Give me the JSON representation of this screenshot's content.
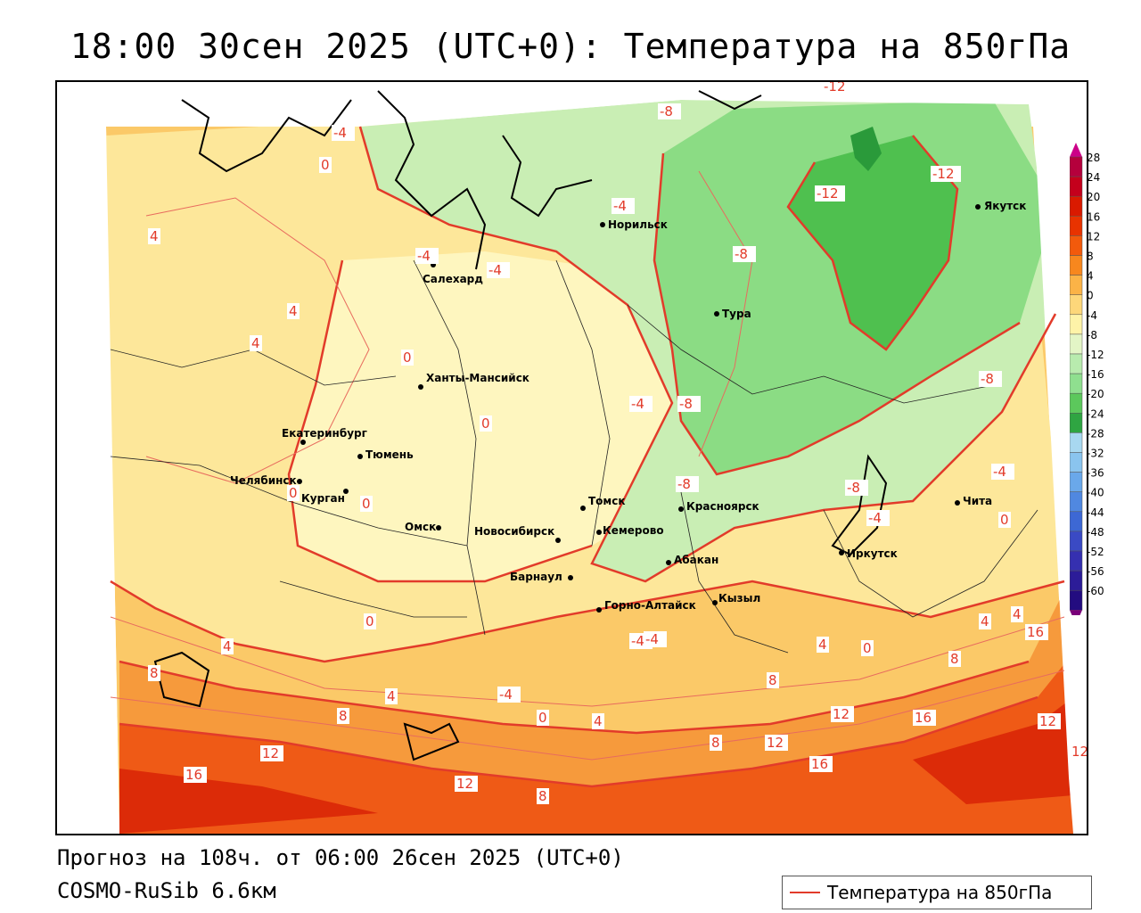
{
  "title": "18:00 30сен 2025 (UTC+0): Температура на 850гПа",
  "forecast_line": "Прогноз на 108ч. от 06:00 26сен 2025 (UTC+0)",
  "model_line": "COSMO-RuSib 6.6км",
  "legend": {
    "label": "Температура на 850гПа",
    "color": "#e23b2a"
  },
  "cities": [
    {
      "name": "Норильск"
    },
    {
      "name": "Салехард"
    },
    {
      "name": "Тура"
    },
    {
      "name": "Якутск"
    },
    {
      "name": "Ханты-Мансийск"
    },
    {
      "name": "Екатеринбург"
    },
    {
      "name": "Тюмень"
    },
    {
      "name": "Челябинск"
    },
    {
      "name": "Курган"
    },
    {
      "name": "Омск"
    },
    {
      "name": "Томск"
    },
    {
      "name": "Красноярск"
    },
    {
      "name": "Новосибирск"
    },
    {
      "name": "Кемерово"
    },
    {
      "name": "Абакан"
    },
    {
      "name": "Барнаул"
    },
    {
      "name": "Горно-Алтайск"
    },
    {
      "name": "Кызыл"
    },
    {
      "name": "Иркутск"
    },
    {
      "name": "Чита"
    }
  ],
  "isotherm_labels": [
    {
      "text": "-4"
    },
    {
      "text": "0"
    },
    {
      "text": "-8"
    },
    {
      "text": "-12"
    },
    {
      "text": "-12"
    },
    {
      "text": "-12"
    },
    {
      "text": "-4"
    },
    {
      "text": "-4"
    },
    {
      "text": "-4"
    },
    {
      "text": "-8"
    },
    {
      "text": "4"
    },
    {
      "text": "4"
    },
    {
      "text": "4"
    },
    {
      "text": "0"
    },
    {
      "text": "0"
    },
    {
      "text": "-4"
    },
    {
      "text": "-8"
    },
    {
      "text": "-8"
    },
    {
      "text": "-8"
    },
    {
      "text": "-4"
    },
    {
      "text": "-8"
    },
    {
      "text": "-4"
    },
    {
      "text": "0"
    },
    {
      "text": "0"
    },
    {
      "text": "0"
    },
    {
      "text": "0"
    },
    {
      "text": "4"
    },
    {
      "text": "4"
    },
    {
      "text": "8"
    },
    {
      "text": "8"
    },
    {
      "text": "4"
    },
    {
      "text": "-4"
    },
    {
      "text": "-4"
    },
    {
      "text": "0"
    },
    {
      "text": "4"
    },
    {
      "text": "4"
    },
    {
      "text": "0"
    },
    {
      "text": "8"
    },
    {
      "text": "8"
    },
    {
      "text": "12"
    },
    {
      "text": "16"
    },
    {
      "text": "12"
    },
    {
      "text": "16"
    },
    {
      "text": "16"
    },
    {
      "text": "12"
    },
    {
      "text": "12"
    },
    {
      "text": "8"
    },
    {
      "text": "12"
    },
    {
      "text": "16"
    },
    {
      "text": "12"
    },
    {
      "text": "8"
    },
    {
      "text": "4"
    },
    {
      "text": "-4"
    }
  ],
  "colorbar": {
    "levels": [
      "28",
      "24",
      "20",
      "16",
      "12",
      "8",
      "4",
      "0",
      "-4",
      "-8",
      "-12",
      "-16",
      "-20",
      "-24",
      "-28",
      "-32",
      "-36",
      "-40",
      "-44",
      "-48",
      "-52",
      "-56",
      "-60"
    ],
    "colors": [
      "#b5003c",
      "#c4001c",
      "#d91a00",
      "#e83300",
      "#f25a0c",
      "#f7871e",
      "#fbb347",
      "#fdd77a",
      "#fef3a8",
      "#e3f5c6",
      "#b8ebae",
      "#8fdf8f",
      "#5cc85c",
      "#2fa542",
      "#a8d8f0",
      "#8ac4ee",
      "#6aa8ea",
      "#5088e0",
      "#3d68d4",
      "#3a4ac4",
      "#3530b0",
      "#2c1c98",
      "#230c80"
    ],
    "top_color": "#cc0088",
    "bottom_color": "#7a007a"
  }
}
